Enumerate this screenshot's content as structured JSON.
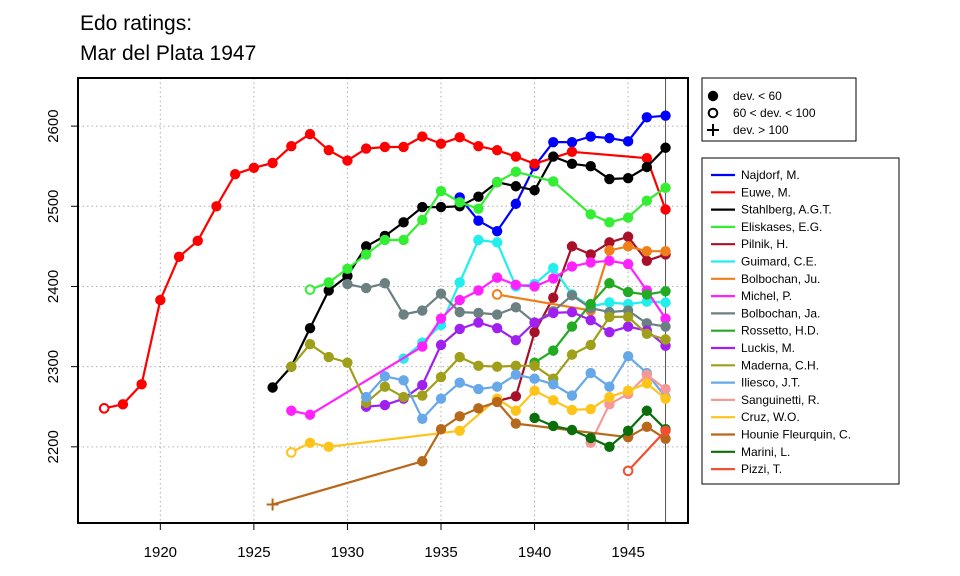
{
  "chart_data": {
    "type": "line",
    "title_lines": [
      "Edo ratings:",
      "Mar del Plata 1947"
    ],
    "xlabel": "",
    "ylabel": "",
    "xlim": [
      1915.6,
      1948.2
    ],
    "ylim": [
      2105,
      2660
    ],
    "x_ticks": [
      1920,
      1925,
      1930,
      1935,
      1940,
      1945
    ],
    "y_ticks": [
      2200,
      2300,
      2400,
      2500,
      2600
    ],
    "grid": true,
    "vline_x": 1947,
    "marker_legend": [
      {
        "marker": "filled",
        "label": "dev. < 60"
      },
      {
        "marker": "open",
        "label": "60 < dev. < 100"
      },
      {
        "marker": "plus",
        "label": "dev. > 100"
      }
    ],
    "series": [
      {
        "name": "Najdorf, M.",
        "color": "#0000ff",
        "x": [
          1936,
          1937,
          1938,
          1939,
          1940,
          1941,
          1942,
          1943,
          1944,
          1945,
          1946,
          1947
        ],
        "y": [
          2511,
          2482,
          2469,
          2503,
          2550,
          2580,
          2580,
          2587,
          2585,
          2581,
          2611,
          2613
        ],
        "m": [
          "f",
          "f",
          "f",
          "f",
          "f",
          "f",
          "f",
          "f",
          "f",
          "f",
          "f",
          "f"
        ]
      },
      {
        "name": "Euwe, M.",
        "color": "#ff0000",
        "x": [
          1917,
          1918,
          1919,
          1920,
          1921,
          1922,
          1923,
          1924,
          1925,
          1926,
          1927,
          1928,
          1929,
          1930,
          1931,
          1932,
          1933,
          1934,
          1935,
          1936,
          1937,
          1938,
          1939,
          1940,
          1942,
          1946,
          1947
        ],
        "y": [
          2248,
          2253,
          2278,
          2383,
          2437,
          2457,
          2500,
          2540,
          2548,
          2554,
          2575,
          2590,
          2570,
          2557,
          2572,
          2574,
          2574,
          2587,
          2578,
          2586,
          2575,
          2570,
          2562,
          2553,
          2568,
          2560,
          2496
        ],
        "m": [
          "o",
          "f",
          "f",
          "f",
          "f",
          "f",
          "f",
          "f",
          "f",
          "f",
          "f",
          "f",
          "f",
          "f",
          "f",
          "f",
          "f",
          "f",
          "f",
          "f",
          "f",
          "f",
          "f",
          "f",
          "f",
          "f",
          "f"
        ]
      },
      {
        "name": "Stahlberg, A.G.T.",
        "color": "#000000",
        "x": [
          1926,
          1927,
          1928,
          1929,
          1930,
          1931,
          1932,
          1933,
          1934,
          1935,
          1936,
          1937,
          1938,
          1939,
          1940,
          1941,
          1942,
          1943,
          1944,
          1945,
          1946,
          1947
        ],
        "y": [
          2274,
          2300,
          2348,
          2395,
          2413,
          2450,
          2463,
          2480,
          2499,
          2499,
          2500,
          2512,
          2530,
          2525,
          2520,
          2562,
          2553,
          2550,
          2534,
          2535,
          2549,
          2573
        ],
        "m": [
          "f",
          "f",
          "f",
          "f",
          "f",
          "f",
          "f",
          "f",
          "f",
          "f",
          "f",
          "f",
          "f",
          "f",
          "f",
          "f",
          "f",
          "f",
          "f",
          "f",
          "f",
          "f"
        ]
      },
      {
        "name": "Eliskases, E.G.",
        "color": "#33ee33",
        "x": [
          1928,
          1929,
          1930,
          1931,
          1932,
          1933,
          1934,
          1935,
          1936,
          1937,
          1938,
          1939,
          1941,
          1943,
          1944,
          1945,
          1946,
          1947
        ],
        "y": [
          2396,
          2405,
          2422,
          2440,
          2458,
          2458,
          2483,
          2519,
          2505,
          2497,
          2530,
          2543,
          2531,
          2490,
          2480,
          2486,
          2507,
          2523
        ],
        "m": [
          "o",
          "f",
          "f",
          "f",
          "f",
          "f",
          "f",
          "f",
          "f",
          "f",
          "f",
          "f",
          "f",
          "f",
          "f",
          "f",
          "f",
          "f"
        ]
      },
      {
        "name": "Pilnik, H.",
        "color": "#a8102a",
        "x": [
          1938,
          1939,
          1940,
          1941,
          1942,
          1943,
          1944,
          1945,
          1946,
          1947
        ],
        "y": [
          2257,
          2263,
          2343,
          2386,
          2450,
          2440,
          2455,
          2462,
          2432,
          2440
        ],
        "m": [
          "f",
          "f",
          "f",
          "f",
          "f",
          "f",
          "f",
          "f",
          "f",
          "f"
        ]
      },
      {
        "name": "Guimard, C.E.",
        "color": "#22eeee",
        "x": [
          1933,
          1934,
          1935,
          1936,
          1937,
          1938,
          1939,
          1940,
          1941,
          1942,
          1943,
          1944,
          1945,
          1946,
          1947
        ],
        "y": [
          2310,
          2330,
          2352,
          2405,
          2458,
          2455,
          2400,
          2403,
          2423,
          2390,
          2375,
          2380,
          2378,
          2381,
          2380
        ],
        "m": [
          "f",
          "f",
          "f",
          "f",
          "f",
          "f",
          "f",
          "f",
          "f",
          "f",
          "f",
          "f",
          "f",
          "f",
          "f"
        ]
      },
      {
        "name": "Bolbochan, Ju.",
        "color": "#f07f1a",
        "x": [
          1938,
          1943,
          1944,
          1945,
          1946,
          1947
        ],
        "y": [
          2390,
          2370,
          2445,
          2450,
          2444,
          2444
        ],
        "m": [
          "o",
          "f",
          "f",
          "f",
          "f",
          "f"
        ]
      },
      {
        "name": "Michel, P.",
        "color": "#ff22ff",
        "x": [
          1927,
          1928,
          1934,
          1935,
          1936,
          1937,
          1938,
          1939,
          1940,
          1941,
          1942,
          1943,
          1944,
          1945,
          1946,
          1947
        ],
        "y": [
          2245,
          2240,
          2325,
          2360,
          2383,
          2395,
          2411,
          2402,
          2400,
          2410,
          2425,
          2430,
          2432,
          2428,
          2395,
          2360
        ],
        "m": [
          "f",
          "f",
          "f",
          "f",
          "f",
          "f",
          "f",
          "f",
          "f",
          "f",
          "f",
          "f",
          "f",
          "f",
          "f",
          "f"
        ]
      },
      {
        "name": "Bolbochan, Ja.",
        "color": "#6b8080",
        "x": [
          1930,
          1931,
          1932,
          1933,
          1934,
          1935,
          1936,
          1937,
          1938,
          1939,
          1940,
          1941,
          1942,
          1943,
          1944,
          1945,
          1946,
          1947
        ],
        "y": [
          2403,
          2398,
          2404,
          2365,
          2370,
          2391,
          2368,
          2367,
          2365,
          2374,
          2355,
          2369,
          2389,
          2373,
          2368,
          2370,
          2354,
          2350
        ],
        "m": [
          "f",
          "f",
          "f",
          "f",
          "f",
          "f",
          "f",
          "f",
          "f",
          "f",
          "f",
          "f",
          "f",
          "f",
          "f",
          "f",
          "f",
          "f"
        ]
      },
      {
        "name": "Rossetto, H.D.",
        "color": "#22aa22",
        "x": [
          1940,
          1941,
          1942,
          1943,
          1944,
          1945,
          1946,
          1947
        ],
        "y": [
          2305,
          2320,
          2350,
          2378,
          2404,
          2393,
          2390,
          2394
        ],
        "m": [
          "f",
          "f",
          "f",
          "f",
          "f",
          "f",
          "f",
          "f"
        ]
      },
      {
        "name": "Luckis, M.",
        "color": "#a020f0",
        "x": [
          1931,
          1932,
          1933,
          1934,
          1935,
          1936,
          1937,
          1938,
          1939,
          1940,
          1941,
          1942,
          1943,
          1944,
          1945,
          1946,
          1947
        ],
        "y": [
          2250,
          2252,
          2260,
          2277,
          2327,
          2347,
          2355,
          2348,
          2333,
          2355,
          2367,
          2368,
          2358,
          2343,
          2350,
          2345,
          2326
        ],
        "m": [
          "f",
          "f",
          "f",
          "f",
          "f",
          "f",
          "f",
          "f",
          "f",
          "f",
          "f",
          "f",
          "f",
          "f",
          "f",
          "f",
          "f"
        ]
      },
      {
        "name": "Maderna, C.H.",
        "color": "#9f9f1a",
        "x": [
          1927,
          1928,
          1929,
          1930,
          1931,
          1932,
          1933,
          1934,
          1935,
          1936,
          1937,
          1938,
          1939,
          1940,
          1941,
          1942,
          1943,
          1944,
          1945,
          1946,
          1947
        ],
        "y": [
          2300,
          2328,
          2312,
          2305,
          2255,
          2275,
          2262,
          2264,
          2287,
          2312,
          2301,
          2300,
          2301,
          2301,
          2285,
          2315,
          2327,
          2362,
          2362,
          2341,
          2334
        ],
        "m": [
          "f",
          "f",
          "f",
          "f",
          "f",
          "f",
          "f",
          "f",
          "f",
          "f",
          "f",
          "f",
          "f",
          "f",
          "f",
          "f",
          "f",
          "f",
          "f",
          "f",
          "f"
        ]
      },
      {
        "name": "Iliesco, J.T.",
        "color": "#66a8e8",
        "x": [
          1931,
          1932,
          1933,
          1934,
          1935,
          1936,
          1937,
          1938,
          1939,
          1940,
          1941,
          1942,
          1943,
          1944,
          1945,
          1946,
          1947
        ],
        "y": [
          2262,
          2288,
          2283,
          2235,
          2260,
          2280,
          2272,
          2275,
          2290,
          2285,
          2278,
          2264,
          2292,
          2275,
          2313,
          2292,
          2262
        ],
        "m": [
          "f",
          "f",
          "f",
          "f",
          "f",
          "f",
          "f",
          "f",
          "f",
          "f",
          "f",
          "f",
          "f",
          "f",
          "f",
          "f",
          "f"
        ]
      },
      {
        "name": "Sanguinetti, R.",
        "color": "#f59898",
        "x": [
          1943,
          1944,
          1945,
          1946,
          1947
        ],
        "y": [
          2205,
          2253,
          2266,
          2290,
          2272
        ],
        "m": [
          "f",
          "f",
          "f",
          "f",
          "f"
        ]
      },
      {
        "name": "Cruz, W.O.",
        "color": "#ffc41a",
        "x": [
          1927,
          1928,
          1929,
          1936,
          1938,
          1939,
          1940,
          1941,
          1942,
          1943,
          1944,
          1945,
          1946,
          1947
        ],
        "y": [
          2193,
          2205,
          2200,
          2220,
          2260,
          2245,
          2270,
          2258,
          2246,
          2247,
          2262,
          2270,
          2279,
          2260
        ],
        "m": [
          "o",
          "f",
          "f",
          "f",
          "f",
          "f",
          "f",
          "f",
          "f",
          "f",
          "f",
          "f",
          "f",
          "f"
        ]
      },
      {
        "name": "Hounie Fleurquin, C.",
        "color": "#b8681a",
        "x": [
          1926,
          1934,
          1935,
          1936,
          1937,
          1938,
          1939,
          1945,
          1946,
          1947
        ],
        "y": [
          2128,
          2182,
          2222,
          2238,
          2248,
          2256,
          2229,
          2212,
          2225,
          2210
        ],
        "m": [
          "p",
          "f",
          "f",
          "f",
          "f",
          "f",
          "f",
          "f",
          "f",
          "f"
        ]
      },
      {
        "name": "Marini, L.",
        "color": "#0a6e0a",
        "x": [
          1940,
          1941,
          1942,
          1943,
          1944,
          1945,
          1946,
          1947
        ],
        "y": [
          2236,
          2226,
          2221,
          2211,
          2200,
          2220,
          2245,
          2222
        ],
        "m": [
          "f",
          "f",
          "f",
          "f",
          "f",
          "f",
          "f",
          "f"
        ]
      },
      {
        "name": "Pizzi, T.",
        "color": "#f05030",
        "x": [
          1945,
          1947
        ],
        "y": [
          2170,
          2220
        ],
        "m": [
          "o",
          "f"
        ]
      }
    ]
  }
}
